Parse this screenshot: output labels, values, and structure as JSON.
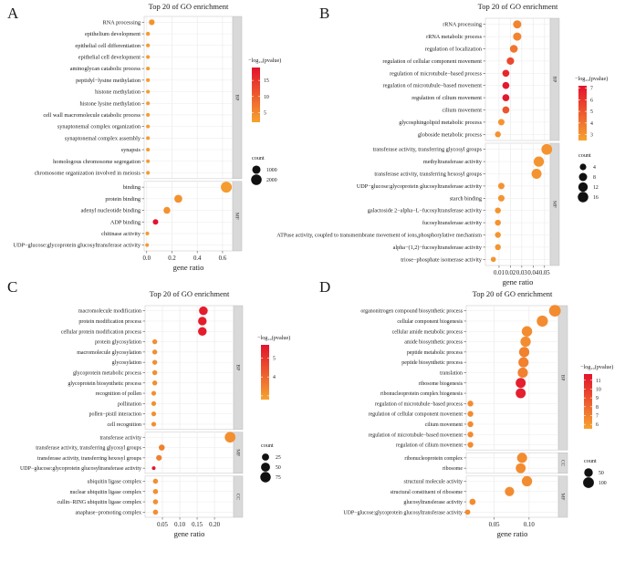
{
  "chart_data": [
    {
      "panel": "A",
      "type": "scatter",
      "title": "Top 20 of GO enrichment",
      "xlabel": "gene ratio",
      "xlim": [
        -0.02,
        0.68
      ],
      "xticks": [
        0.0,
        0.2,
        0.4,
        0.6
      ],
      "xtick_labels": [
        "0.0",
        "0.2",
        "0.4",
        "0.6"
      ],
      "color_legend": {
        "title": "−log₁₀(pvalue)",
        "range": [
          2,
          19
        ],
        "ticks": [
          5,
          10,
          15
        ],
        "tick_labels": [
          "5",
          "10",
          "15"
        ]
      },
      "size_legend": {
        "title": "count",
        "values": [
          1000,
          2000
        ],
        "labels": [
          "1000",
          "2000"
        ],
        "range": [
          1,
          2200
        ]
      },
      "groups": [
        {
          "name": "BP",
          "terms": [
            {
              "label": "RNA processing",
              "x": 0.04,
              "color_value": 4,
              "count": 300
            },
            {
              "label": "epithelium development",
              "x": 0.01,
              "color_value": 3,
              "count": 60
            },
            {
              "label": "epithelial cell differentiation",
              "x": 0.01,
              "color_value": 3,
              "count": 45
            },
            {
              "label": "epithelial cell development",
              "x": 0.01,
              "color_value": 3,
              "count": 40
            },
            {
              "label": "aminoglycan catabolic process",
              "x": 0.01,
              "color_value": 3,
              "count": 35
            },
            {
              "label": "peptidyl−lysine methylation",
              "x": 0.01,
              "color_value": 3,
              "count": 35
            },
            {
              "label": "histone methylation",
              "x": 0.01,
              "color_value": 3,
              "count": 35
            },
            {
              "label": "histone lysine methylation",
              "x": 0.01,
              "color_value": 3,
              "count": 35
            },
            {
              "label": "cell wall macromolecule catabolic process",
              "x": 0.01,
              "color_value": 3,
              "count": 30
            },
            {
              "label": "synaptonemal complex organization",
              "x": 0.01,
              "color_value": 3,
              "count": 30
            },
            {
              "label": "synaptonemal complex assembly",
              "x": 0.01,
              "color_value": 3,
              "count": 30
            },
            {
              "label": "synapsis",
              "x": 0.01,
              "color_value": 3,
              "count": 30
            },
            {
              "label": "homologous chromosome segregation",
              "x": 0.01,
              "color_value": 3,
              "count": 30
            },
            {
              "label": "chromosome organization involved in meiosis",
              "x": 0.01,
              "color_value": 3,
              "count": 30
            }
          ]
        },
        {
          "name": "MF",
          "terms": [
            {
              "label": "binding",
              "x": 0.63,
              "color_value": 3,
              "count": 2200
            },
            {
              "label": "protein binding",
              "x": 0.25,
              "color_value": 4,
              "count": 900
            },
            {
              "label": "adenyl nucleotide binding",
              "x": 0.16,
              "color_value": 4,
              "count": 550
            },
            {
              "label": "ADP binding",
              "x": 0.07,
              "color_value": 19,
              "count": 250
            },
            {
              "label": "chitinase activity",
              "x": 0.005,
              "color_value": 3,
              "count": 30
            },
            {
              "label": "UDP−glucose:glycoprotein glucosyltransferase activity",
              "x": 0.003,
              "color_value": 3,
              "count": 25
            }
          ]
        }
      ]
    },
    {
      "panel": "B",
      "type": "scatter",
      "title": "Top 20 of GO enrichment",
      "xlabel": "gene ratio",
      "xlim": [
        -0.002,
        0.055
      ],
      "xticks": [
        0.01,
        0.02,
        0.03,
        0.04,
        0.05
      ],
      "xtick_labels": [
        "0.01",
        "0.02",
        "0.03",
        "0.04",
        "0.05"
      ],
      "color_legend": {
        "title": "−log₁₀(pvalue)",
        "range": [
          2.5,
          7.2
        ],
        "ticks": [
          3,
          4,
          5,
          6,
          7
        ],
        "tick_labels": [
          "3",
          "4",
          "5",
          "6",
          "7"
        ]
      },
      "size_legend": {
        "title": "count",
        "values": [
          4,
          8,
          12,
          16
        ],
        "labels": [
          "4",
          "8",
          "12",
          "16"
        ],
        "range": [
          1,
          18
        ]
      },
      "groups": [
        {
          "name": "BP",
          "terms": [
            {
              "label": "rRNA processing",
              "x": 0.026,
              "color_value": 3.5,
              "count": 8
            },
            {
              "label": "rRNA metabolic process",
              "x": 0.026,
              "color_value": 3.5,
              "count": 8
            },
            {
              "label": "regulation of localization",
              "x": 0.023,
              "color_value": 4,
              "count": 7
            },
            {
              "label": "regulation of cellular component movement",
              "x": 0.02,
              "color_value": 5.5,
              "count": 6
            },
            {
              "label": "regulation of microtubule−based process",
              "x": 0.016,
              "color_value": 6.5,
              "count": 5
            },
            {
              "label": "regulation of microtubule−based movement",
              "x": 0.016,
              "color_value": 7,
              "count": 5
            },
            {
              "label": "regulation of cilium movement",
              "x": 0.016,
              "color_value": 7,
              "count": 5
            },
            {
              "label": "cilium movement",
              "x": 0.016,
              "color_value": 5,
              "count": 5
            },
            {
              "label": "glycosphingolipid metabolic process",
              "x": 0.012,
              "color_value": 3,
              "count": 4
            },
            {
              "label": "globoside metabolic process",
              "x": 0.009,
              "color_value": 3,
              "count": 3
            }
          ]
        },
        {
          "name": "MF",
          "terms": [
            {
              "label": "transferase activity, transferring glycosyl groups",
              "x": 0.052,
              "color_value": 3,
              "count": 17
            },
            {
              "label": "methyltransferase activity",
              "x": 0.045,
              "color_value": 3,
              "count": 15
            },
            {
              "label": "transferase activity, transferring hexosyl groups",
              "x": 0.043,
              "color_value": 3,
              "count": 14
            },
            {
              "label": "UDP−glucose:glycoprotein glucosyltransferase activity",
              "x": 0.012,
              "color_value": 3,
              "count": 4
            },
            {
              "label": "starch binding",
              "x": 0.012,
              "color_value": 3,
              "count": 4
            },
            {
              "label": "galactoside 2−alpha−L−fucosyltransferase activity",
              "x": 0.009,
              "color_value": 3,
              "count": 3
            },
            {
              "label": "fucosyltransferase activity",
              "x": 0.009,
              "color_value": 3,
              "count": 3
            },
            {
              "label": "ATPase activity, coupled to transmembrane movement of ions,phosphorylative mechanism",
              "x": 0.009,
              "color_value": 3,
              "count": 3
            },
            {
              "label": "alpha−(1,2)−fucosyltransferase activity",
              "x": 0.009,
              "color_value": 3,
              "count": 3
            },
            {
              "label": "triose−phosphate isomerase activity",
              "x": 0.005,
              "color_value": 3,
              "count": 2
            }
          ]
        }
      ]
    },
    {
      "panel": "C",
      "type": "scatter",
      "title": "Top 20 of GO enrichment",
      "xlabel": "gene ratio",
      "xlim": [
        0.0,
        0.255
      ],
      "xticks": [
        0.05,
        0.1,
        0.15,
        0.2
      ],
      "xtick_labels": [
        "0.05",
        "0.10",
        "0.15",
        "0.20"
      ],
      "color_legend": {
        "title": "−log₁₀(pvalue)",
        "range": [
          2.8,
          5.7
        ],
        "ticks": [
          3,
          4,
          5
        ],
        "tick_labels": [
          "",
          "4",
          "5"
        ]
      },
      "size_legend": {
        "title": "count",
        "values": [
          25,
          50,
          75
        ],
        "labels": [
          "25",
          "50",
          "75"
        ],
        "range": [
          1,
          85
        ]
      },
      "groups": [
        {
          "name": "BP",
          "terms": [
            {
              "label": "macromolecule modification",
              "x": 0.168,
              "color_value": 5.5,
              "count": 45
            },
            {
              "label": "protein modification process",
              "x": 0.165,
              "color_value": 5.5,
              "count": 44
            },
            {
              "label": "cellular protein modification process",
              "x": 0.165,
              "color_value": 5.5,
              "count": 44
            },
            {
              "label": "protein glycosylation",
              "x": 0.028,
              "color_value": 3.2,
              "count": 7
            },
            {
              "label": "macromolecule glycosylation",
              "x": 0.028,
              "color_value": 3.2,
              "count": 7
            },
            {
              "label": "glycosylation",
              "x": 0.028,
              "color_value": 3.2,
              "count": 7
            },
            {
              "label": "glycoprotein metabolic process",
              "x": 0.028,
              "color_value": 3.2,
              "count": 7
            },
            {
              "label": "glycoprotein biosynthetic process",
              "x": 0.028,
              "color_value": 3.2,
              "count": 7
            },
            {
              "label": "recognition of pollen",
              "x": 0.025,
              "color_value": 3.2,
              "count": 6
            },
            {
              "label": "pollination",
              "x": 0.025,
              "color_value": 3.2,
              "count": 6
            },
            {
              "label": "pollen−pistil interaction",
              "x": 0.025,
              "color_value": 3.2,
              "count": 6
            },
            {
              "label": "cell recognition",
              "x": 0.025,
              "color_value": 3.2,
              "count": 6
            }
          ]
        },
        {
          "name": "MF",
          "terms": [
            {
              "label": "transferase activity",
              "x": 0.245,
              "color_value": 3.2,
              "count": 80
            },
            {
              "label": "transferase activity, transferring glycosyl groups",
              "x": 0.048,
              "color_value": 3.5,
              "count": 14
            },
            {
              "label": "transferase activity, transferring hexosyl groups",
              "x": 0.04,
              "color_value": 3.5,
              "count": 12
            },
            {
              "label": "UDP−glucose:glycoprotein glucosyltransferase activity",
              "x": 0.025,
              "color_value": 5.7,
              "count": 2
            }
          ]
        },
        {
          "name": "CC",
          "terms": [
            {
              "label": "ubiquitin ligase complex",
              "x": 0.03,
              "color_value": 3.2,
              "count": 8
            },
            {
              "label": "nuclear ubiquitin ligase complex",
              "x": 0.03,
              "color_value": 3.2,
              "count": 8
            },
            {
              "label": "cullin−RING ubiquitin ligase complex",
              "x": 0.03,
              "color_value": 3.2,
              "count": 8
            },
            {
              "label": "anaphase−promoting complex",
              "x": 0.03,
              "color_value": 3.2,
              "count": 8
            }
          ]
        }
      ]
    },
    {
      "panel": "D",
      "type": "scatter",
      "title": "Top 20 of GO enrichment",
      "xlabel": "gene ratio",
      "xlim": [
        0.01,
        0.142
      ],
      "xticks": [
        0.05,
        0.1
      ],
      "xtick_labels": [
        "0.05",
        "0.10"
      ],
      "color_legend": {
        "title": "−log₁₀(pvalue)",
        "range": [
          5.5,
          11.7
        ],
        "ticks": [
          6,
          7,
          8,
          9,
          10,
          11
        ],
        "tick_labels": [
          "6",
          "7",
          "8",
          "9",
          "10",
          "11"
        ]
      },
      "size_legend": {
        "title": "count",
        "values": [
          50,
          100
        ],
        "labels": [
          "50",
          "100"
        ],
        "range": [
          1,
          130
        ]
      },
      "groups": [
        {
          "name": "BP",
          "terms": [
            {
              "label": "organonitrogen compound biosynthetic process",
              "x": 0.137,
              "color_value": 6.5,
              "count": 125
            },
            {
              "label": "cellular component biogenesis",
              "x": 0.119,
              "color_value": 6.5,
              "count": 110
            },
            {
              "label": "cellular amide metabolic process",
              "x": 0.097,
              "color_value": 6.5,
              "count": 90
            },
            {
              "label": "amide biosynthetic process",
              "x": 0.095,
              "color_value": 6.5,
              "count": 88
            },
            {
              "label": "peptide metabolic process",
              "x": 0.093,
              "color_value": 7,
              "count": 86
            },
            {
              "label": "peptide biosynthetic process",
              "x": 0.092,
              "color_value": 7,
              "count": 85
            },
            {
              "label": "translation",
              "x": 0.091,
              "color_value": 7,
              "count": 84
            },
            {
              "label": "ribosome biogenesis",
              "x": 0.088,
              "color_value": 11.2,
              "count": 80
            },
            {
              "label": "ribonucleoprotein complex biogenesis",
              "x": 0.088,
              "color_value": 11.2,
              "count": 80
            },
            {
              "label": "regulation of microtubule−based process",
              "x": 0.016,
              "color_value": 6.5,
              "count": 12
            },
            {
              "label": "regulation of cellular component movement",
              "x": 0.016,
              "color_value": 6.5,
              "count": 12
            },
            {
              "label": "cilium movement",
              "x": 0.016,
              "color_value": 6.5,
              "count": 12
            },
            {
              "label": "regulation of microtubule−based movement",
              "x": 0.016,
              "color_value": 6.5,
              "count": 12
            },
            {
              "label": "regulation of cilium movement",
              "x": 0.016,
              "color_value": 6.5,
              "count": 12
            }
          ]
        },
        {
          "name": "CC",
          "terms": [
            {
              "label": "ribonucleoprotein complex",
              "x": 0.09,
              "color_value": 6.5,
              "count": 82
            },
            {
              "label": "ribosome",
              "x": 0.088,
              "color_value": 6.5,
              "count": 78
            }
          ]
        },
        {
          "name": "MF",
          "terms": [
            {
              "label": "structural molecule activity",
              "x": 0.097,
              "color_value": 6.5,
              "count": 88
            },
            {
              "label": "structural constituent of ribosome",
              "x": 0.072,
              "color_value": 6.5,
              "count": 65
            },
            {
              "label": "glucosyltransferase activity",
              "x": 0.019,
              "color_value": 6.5,
              "count": 16
            },
            {
              "label": "UDP−glucose:glycoprotein glucosyltransferase activity",
              "x": 0.012,
              "color_value": 6.5,
              "count": 8
            }
          ]
        }
      ]
    }
  ],
  "colors": {
    "low": "#f6a330",
    "high": "#e3132d",
    "strip": "#d9d9d9",
    "grid": "#ebebeb",
    "text": "#1a1a1a"
  }
}
